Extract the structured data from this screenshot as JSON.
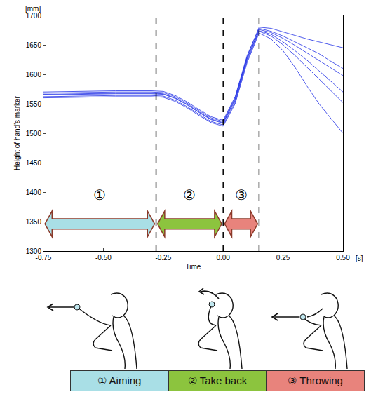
{
  "chart_data": {
    "type": "line",
    "xlabel": "Time",
    "ylabel": "Height of hand's marker",
    "x_unit": "[s]",
    "y_unit": "[mm]",
    "color": "#1f2ee6",
    "grid": false,
    "x": [
      -0.75,
      -0.6,
      -0.45,
      -0.3,
      -0.25,
      -0.2,
      -0.15,
      -0.1,
      -0.05,
      0,
      0.05,
      0.1,
      0.15,
      0.2,
      0.25,
      0.3,
      0.35,
      0.4,
      0.45,
      0.5
    ],
    "series": [
      {
        "values": [
          1568,
          1569,
          1570,
          1570,
          1569,
          1562,
          1551,
          1538,
          1526,
          1520,
          1560,
          1630,
          1680,
          1678,
          1672,
          1666,
          1660,
          1655,
          1650,
          1645
        ]
      },
      {
        "values": [
          1565,
          1566,
          1567,
          1567,
          1566,
          1559,
          1548,
          1535,
          1523,
          1517,
          1556,
          1626,
          1676,
          1671,
          1661,
          1649,
          1636,
          1623,
          1611,
          1598
        ]
      },
      {
        "values": [
          1562,
          1563,
          1564,
          1564,
          1563,
          1556,
          1545,
          1532,
          1520,
          1514,
          1553,
          1623,
          1673,
          1665,
          1650,
          1632,
          1612,
          1592,
          1572,
          1552
        ]
      },
      {
        "values": [
          1560,
          1561,
          1562,
          1562,
          1561,
          1554,
          1543,
          1530,
          1518,
          1512,
          1550,
          1620,
          1670,
          1660,
          1640,
          1612,
          1580,
          1550,
          1525,
          1500
        ]
      },
      {
        "values": [
          1570,
          1571,
          1572,
          1572,
          1571,
          1564,
          1553,
          1540,
          1528,
          1522,
          1562,
          1632,
          1678,
          1673,
          1665,
          1655,
          1645,
          1635,
          1622,
          1610
        ]
      },
      {
        "values": [
          1566,
          1567,
          1568,
          1568,
          1567,
          1560,
          1549,
          1536,
          1524,
          1518,
          1558,
          1628,
          1674,
          1668,
          1655,
          1640,
          1624,
          1606,
          1588,
          1570
        ]
      }
    ],
    "xlim": [
      -0.75,
      0.5
    ],
    "ylim": [
      1300,
      1700
    ],
    "xticks": [
      -0.75,
      {
        "value": -0.5,
        "label": "-0.50"
      },
      -0.25,
      {
        "value": 0,
        "label": "0.00"
      },
      0.25,
      {
        "value": 0.5,
        "label": "0.50"
      }
    ],
    "yticks": [
      1300,
      1350,
      1400,
      1450,
      1500,
      1550,
      1600,
      1650,
      1700
    ],
    "boundaries": [
      -0.28,
      0,
      0.15
    ],
    "phases": [
      {
        "symbol": "①",
        "name": "Aiming",
        "color": "#a9dfe6"
      },
      {
        "symbol": "②",
        "name": "Take back",
        "color": "#8cc43e"
      },
      {
        "symbol": "③",
        "name": "Throwing",
        "color": "#e8837c"
      }
    ]
  }
}
